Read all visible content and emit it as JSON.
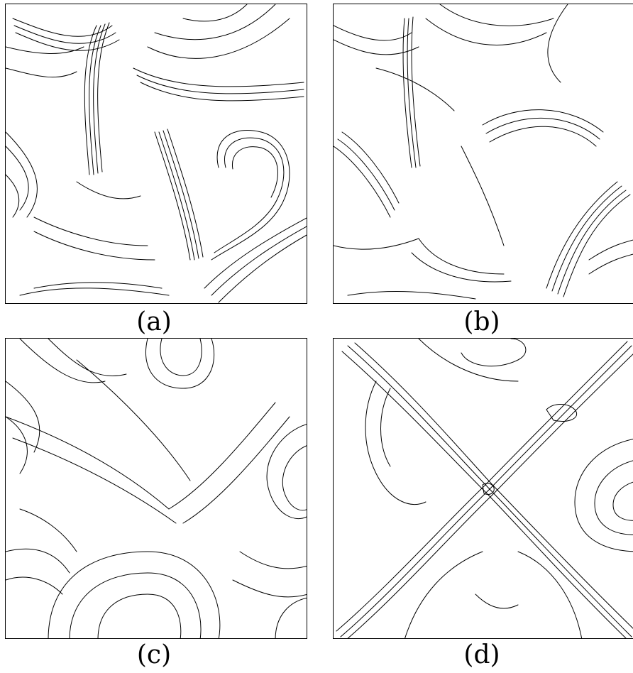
{
  "figure": {
    "panels": [
      {
        "id": "a",
        "caption": "(a)"
      },
      {
        "id": "b",
        "caption": "(b)"
      },
      {
        "id": "c",
        "caption": "(c)"
      },
      {
        "id": "d",
        "caption": "(d)"
      }
    ],
    "line_color": "#000000",
    "background": "#ffffff"
  }
}
